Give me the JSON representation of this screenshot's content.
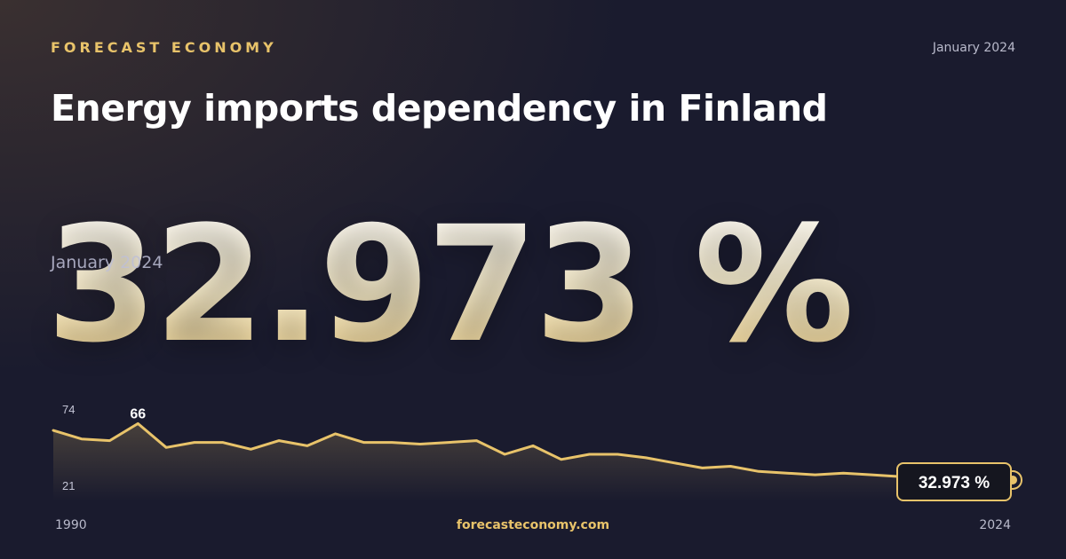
{
  "header": {
    "brand": "FORECAST ECONOMY",
    "date": "January 2024",
    "title": "Energy imports dependency in Finland"
  },
  "headline": {
    "value": "32.973 %",
    "date": "January 2024"
  },
  "footer": {
    "url": "forecasteconomy.com",
    "x_start": "1990",
    "x_end": "2024"
  },
  "colors": {
    "accent": "#e8c36a",
    "background": "#1a1b2e",
    "line": "#e8c36a"
  },
  "chart_data": {
    "type": "area",
    "title": "Energy imports dependency in Finland",
    "xlabel": "",
    "ylabel": "",
    "xlim": [
      1990,
      2024
    ],
    "ylim": [
      21,
      74
    ],
    "yticks": [
      74,
      21
    ],
    "peak_label": "66",
    "last_label": "32.973 %",
    "grid": false,
    "series": [
      {
        "x": [
          1990,
          1991,
          1992,
          1993,
          1994,
          1995,
          1996,
          1997,
          1998,
          1999,
          2000,
          2001,
          2002,
          2003,
          2004,
          2005,
          2006,
          2007,
          2008,
          2009,
          2010,
          2011,
          2012,
          2013,
          2014,
          2015,
          2016,
          2017,
          2018,
          2019,
          2020,
          2021,
          2022,
          2023,
          2024
        ],
        "y": [
          62,
          57,
          56,
          66,
          52,
          55,
          55,
          51,
          56,
          53,
          60,
          55,
          55,
          54,
          55,
          56,
          48,
          53,
          45,
          48,
          48,
          46,
          43,
          40,
          41,
          38,
          37,
          36,
          37,
          36,
          35,
          34,
          34,
          33,
          32.973
        ]
      }
    ]
  }
}
